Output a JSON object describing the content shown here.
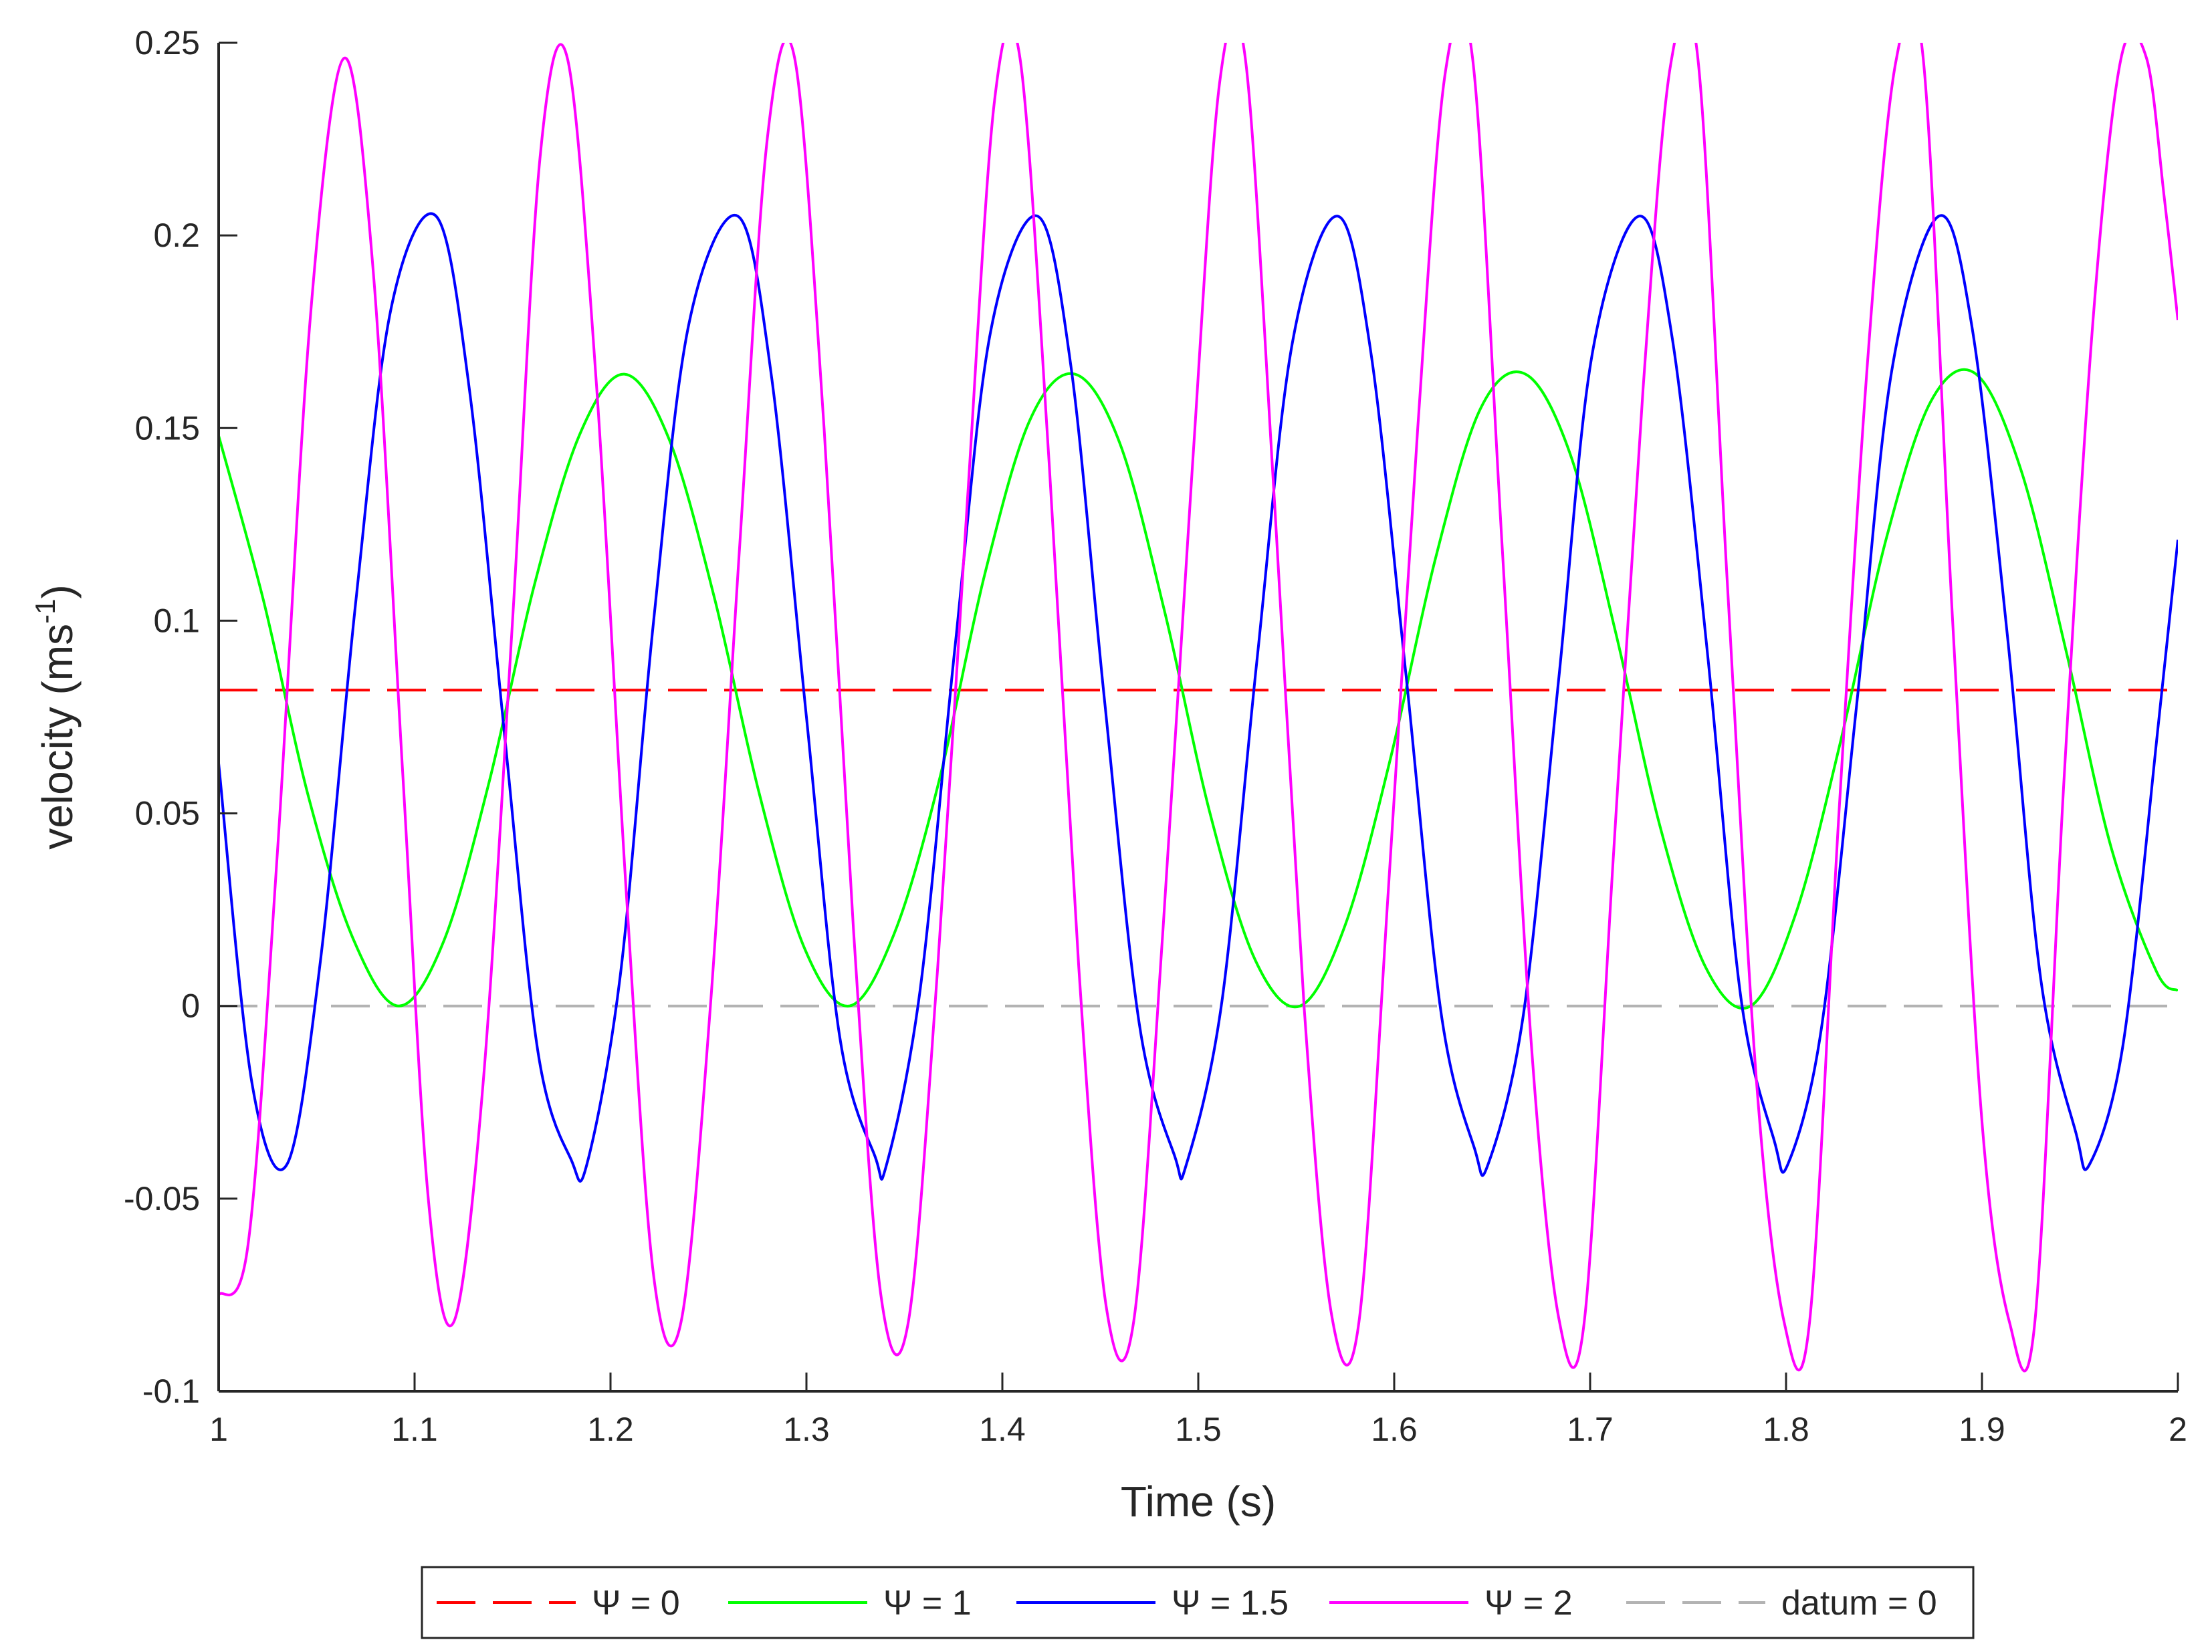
{
  "chart_data": {
    "type": "line",
    "title": "",
    "xlabel": "Time (s)",
    "ylabel": "velocity (ms",
    "ylabel_sup": "-1",
    "ylabel_close": ")",
    "xlim": [
      1,
      2
    ],
    "ylim": [
      -0.1,
      0.25
    ],
    "xticks": [
      1,
      1.1,
      1.2,
      1.3,
      1.4,
      1.5,
      1.6,
      1.7,
      1.8,
      1.9,
      2
    ],
    "xtick_labels": [
      "1",
      "1.1",
      "1.2",
      "1.3",
      "1.4",
      "1.5",
      "1.6",
      "1.7",
      "1.8",
      "1.9",
      "2"
    ],
    "yticks": [
      -0.1,
      -0.05,
      0,
      0.05,
      0.1,
      0.15,
      0.2,
      0.25
    ],
    "ytick_labels": [
      "-0.1",
      "-0.05",
      "0",
      "0.05",
      "0.1",
      "0.15",
      "0.2",
      "0.25"
    ],
    "grid": false,
    "legend_position": "bottom-outside",
    "series": [
      {
        "name": "Ψ = 0",
        "color": "#ff0000",
        "dash": true,
        "x": [
          1,
          2
        ],
        "y": [
          0.082,
          0.082
        ]
      },
      {
        "name": "Ψ = 1",
        "color": "#00ff00",
        "dash": false,
        "x": [
          1.0,
          1.023,
          1.046,
          1.069,
          1.092,
          1.115,
          1.138,
          1.161,
          1.184,
          1.207,
          1.23,
          1.253,
          1.276,
          1.299,
          1.322,
          1.345,
          1.368,
          1.391,
          1.414,
          1.437,
          1.46,
          1.483,
          1.506,
          1.529,
          1.552,
          1.575,
          1.598,
          1.621,
          1.644,
          1.667,
          1.69,
          1.713,
          1.736,
          1.759,
          1.782,
          1.805,
          1.828,
          1.851,
          1.874,
          1.897,
          1.92,
          1.943,
          1.966,
          1.989,
          2.0
        ],
        "y": [
          0.148,
          0.105,
          0.054,
          0.017,
          0.0,
          0.017,
          0.058,
          0.109,
          0.148,
          0.164,
          0.147,
          0.106,
          0.055,
          0.015,
          0.0,
          0.019,
          0.059,
          0.112,
          0.152,
          0.164,
          0.146,
          0.102,
          0.05,
          0.012,
          0.0,
          0.021,
          0.064,
          0.116,
          0.155,
          0.164,
          0.143,
          0.097,
          0.046,
          0.01,
          0.0,
          0.024,
          0.069,
          0.121,
          0.157,
          0.164,
          0.139,
          0.092,
          0.041,
          0.009,
          0.004
        ]
      },
      {
        "name": "Ψ = 1.5",
        "color": "#0000ff",
        "dash": false,
        "x": [
          1.0,
          1.017,
          1.035,
          1.052,
          1.07,
          1.088,
          1.111,
          1.128,
          1.146,
          1.163,
          1.18,
          1.188,
          1.205,
          1.222,
          1.24,
          1.265,
          1.282,
          1.3,
          1.317,
          1.335,
          1.341,
          1.358,
          1.376,
          1.394,
          1.418,
          1.435,
          1.452,
          1.47,
          1.488,
          1.494,
          1.512,
          1.53,
          1.548,
          1.571,
          1.588,
          1.606,
          1.624,
          1.641,
          1.648,
          1.666,
          1.684,
          1.701,
          1.725,
          1.742,
          1.76,
          1.777,
          1.794,
          1.801,
          1.818,
          1.836,
          1.854,
          1.878,
          1.895,
          1.913,
          1.93,
          1.948,
          1.955,
          1.972,
          1.99,
          2.0
        ],
        "y": [
          0.063,
          -0.02,
          -0.041,
          0.012,
          0.105,
          0.181,
          0.205,
          0.16,
          0.07,
          -0.012,
          -0.04,
          -0.041,
          0.008,
          0.1,
          0.177,
          0.205,
          0.164,
          0.075,
          -0.008,
          -0.039,
          -0.041,
          0.004,
          0.094,
          0.175,
          0.205,
          0.166,
          0.08,
          -0.005,
          -0.039,
          -0.041,
          0.001,
          0.09,
          0.172,
          0.205,
          0.17,
          0.086,
          -0.002,
          -0.037,
          -0.041,
          -0.002,
          0.085,
          0.169,
          0.205,
          0.173,
          0.091,
          0.002,
          -0.035,
          -0.041,
          -0.006,
          0.078,
          0.165,
          0.205,
          0.176,
          0.096,
          0.007,
          -0.033,
          -0.041,
          -0.01,
          0.073,
          0.121
        ]
      },
      {
        "name": "Ψ = 2",
        "color": "#ff00ff",
        "dash": false,
        "x": [
          1.0,
          1.015,
          1.03,
          1.047,
          1.064,
          1.079,
          1.094,
          1.107,
          1.12,
          1.135,
          1.15,
          1.164,
          1.178,
          1.193,
          1.208,
          1.222,
          1.236,
          1.251,
          1.266,
          1.28,
          1.294,
          1.309,
          1.324,
          1.338,
          1.352,
          1.367,
          1.382,
          1.396,
          1.409,
          1.424,
          1.439,
          1.453,
          1.467,
          1.482,
          1.497,
          1.511,
          1.524,
          1.539,
          1.554,
          1.568,
          1.582,
          1.597,
          1.612,
          1.626,
          1.64,
          1.655,
          1.67,
          1.684,
          1.697,
          1.712,
          1.727,
          1.741,
          1.755,
          1.77,
          1.785,
          1.799,
          1.812,
          1.827,
          1.842,
          1.856,
          1.87,
          1.885,
          1.9,
          1.914,
          1.927,
          1.942,
          1.957,
          1.971,
          1.984,
          1.993,
          2.0
        ],
        "y": [
          -0.075,
          -0.062,
          0.04,
          0.18,
          0.246,
          0.19,
          0.06,
          -0.05,
          -0.082,
          -0.02,
          0.1,
          0.22,
          0.246,
          0.16,
          0.03,
          -0.07,
          -0.082,
          0.0,
          0.12,
          0.225,
          0.246,
          0.15,
          0.02,
          -0.075,
          -0.082,
          0.01,
          0.13,
          0.235,
          0.246,
          0.14,
          0.01,
          -0.078,
          -0.082,
          0.02,
          0.14,
          0.24,
          0.246,
          0.13,
          0.0,
          -0.08,
          -0.082,
          0.03,
          0.15,
          0.242,
          0.246,
          0.12,
          -0.01,
          -0.081,
          -0.082,
          0.04,
          0.16,
          0.244,
          0.246,
          0.11,
          -0.02,
          -0.082,
          -0.082,
          0.05,
          0.17,
          0.245,
          0.246,
          0.1,
          -0.03,
          -0.082,
          -0.082,
          0.06,
          0.18,
          0.246,
          0.246,
          0.21,
          0.178
        ]
      },
      {
        "name": "datum = 0",
        "color": "#b3b3b3",
        "dash": true,
        "x": [
          1,
          2
        ],
        "y": [
          0,
          0
        ]
      }
    ]
  }
}
